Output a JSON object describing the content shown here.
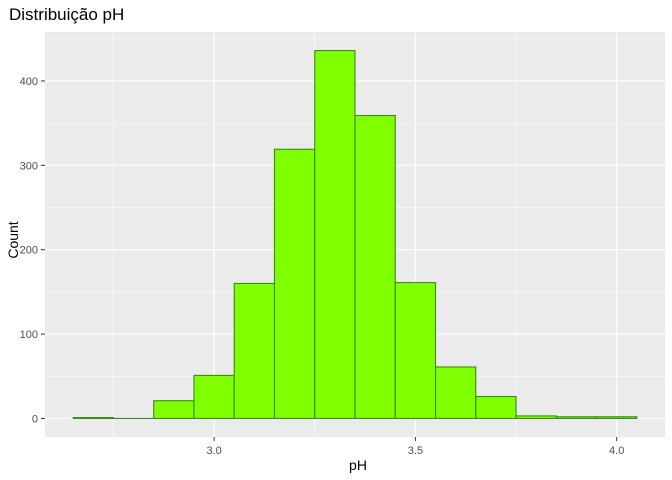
{
  "chart_data": {
    "type": "bar",
    "title": "Distribuição pH",
    "xlabel": "pH",
    "ylabel": "Count",
    "bins": [
      {
        "from": 2.65,
        "to": 2.75,
        "count": 1
      },
      {
        "from": 2.75,
        "to": 2.85,
        "count": 0
      },
      {
        "from": 2.85,
        "to": 2.95,
        "count": 21
      },
      {
        "from": 2.95,
        "to": 3.05,
        "count": 51
      },
      {
        "from": 3.05,
        "to": 3.15,
        "count": 160
      },
      {
        "from": 3.15,
        "to": 3.25,
        "count": 319
      },
      {
        "from": 3.25,
        "to": 3.35,
        "count": 436
      },
      {
        "from": 3.35,
        "to": 3.45,
        "count": 359
      },
      {
        "from": 3.45,
        "to": 3.55,
        "count": 161
      },
      {
        "from": 3.55,
        "to": 3.65,
        "count": 61
      },
      {
        "from": 3.65,
        "to": 3.75,
        "count": 26
      },
      {
        "from": 3.75,
        "to": 3.85,
        "count": 3
      },
      {
        "from": 3.85,
        "to": 3.95,
        "count": 2
      },
      {
        "from": 3.95,
        "to": 4.05,
        "count": 2
      }
    ],
    "xlim": [
      2.58,
      4.12
    ],
    "ylim": [
      -22,
      458
    ],
    "xticks": [
      3.0,
      3.5,
      4.0
    ],
    "xtick_labels": [
      "3.0",
      "3.5",
      "4.0"
    ],
    "yticks": [
      0,
      100,
      200,
      300,
      400
    ],
    "ytick_labels": [
      "0",
      "100",
      "200",
      "300",
      "400"
    ],
    "grid": true,
    "legend": "none",
    "colors": {
      "bar_fill": "#7fff00",
      "bar_stroke": "#3a8a1c",
      "panel": "#ebebeb",
      "grid": "#ffffff"
    }
  }
}
